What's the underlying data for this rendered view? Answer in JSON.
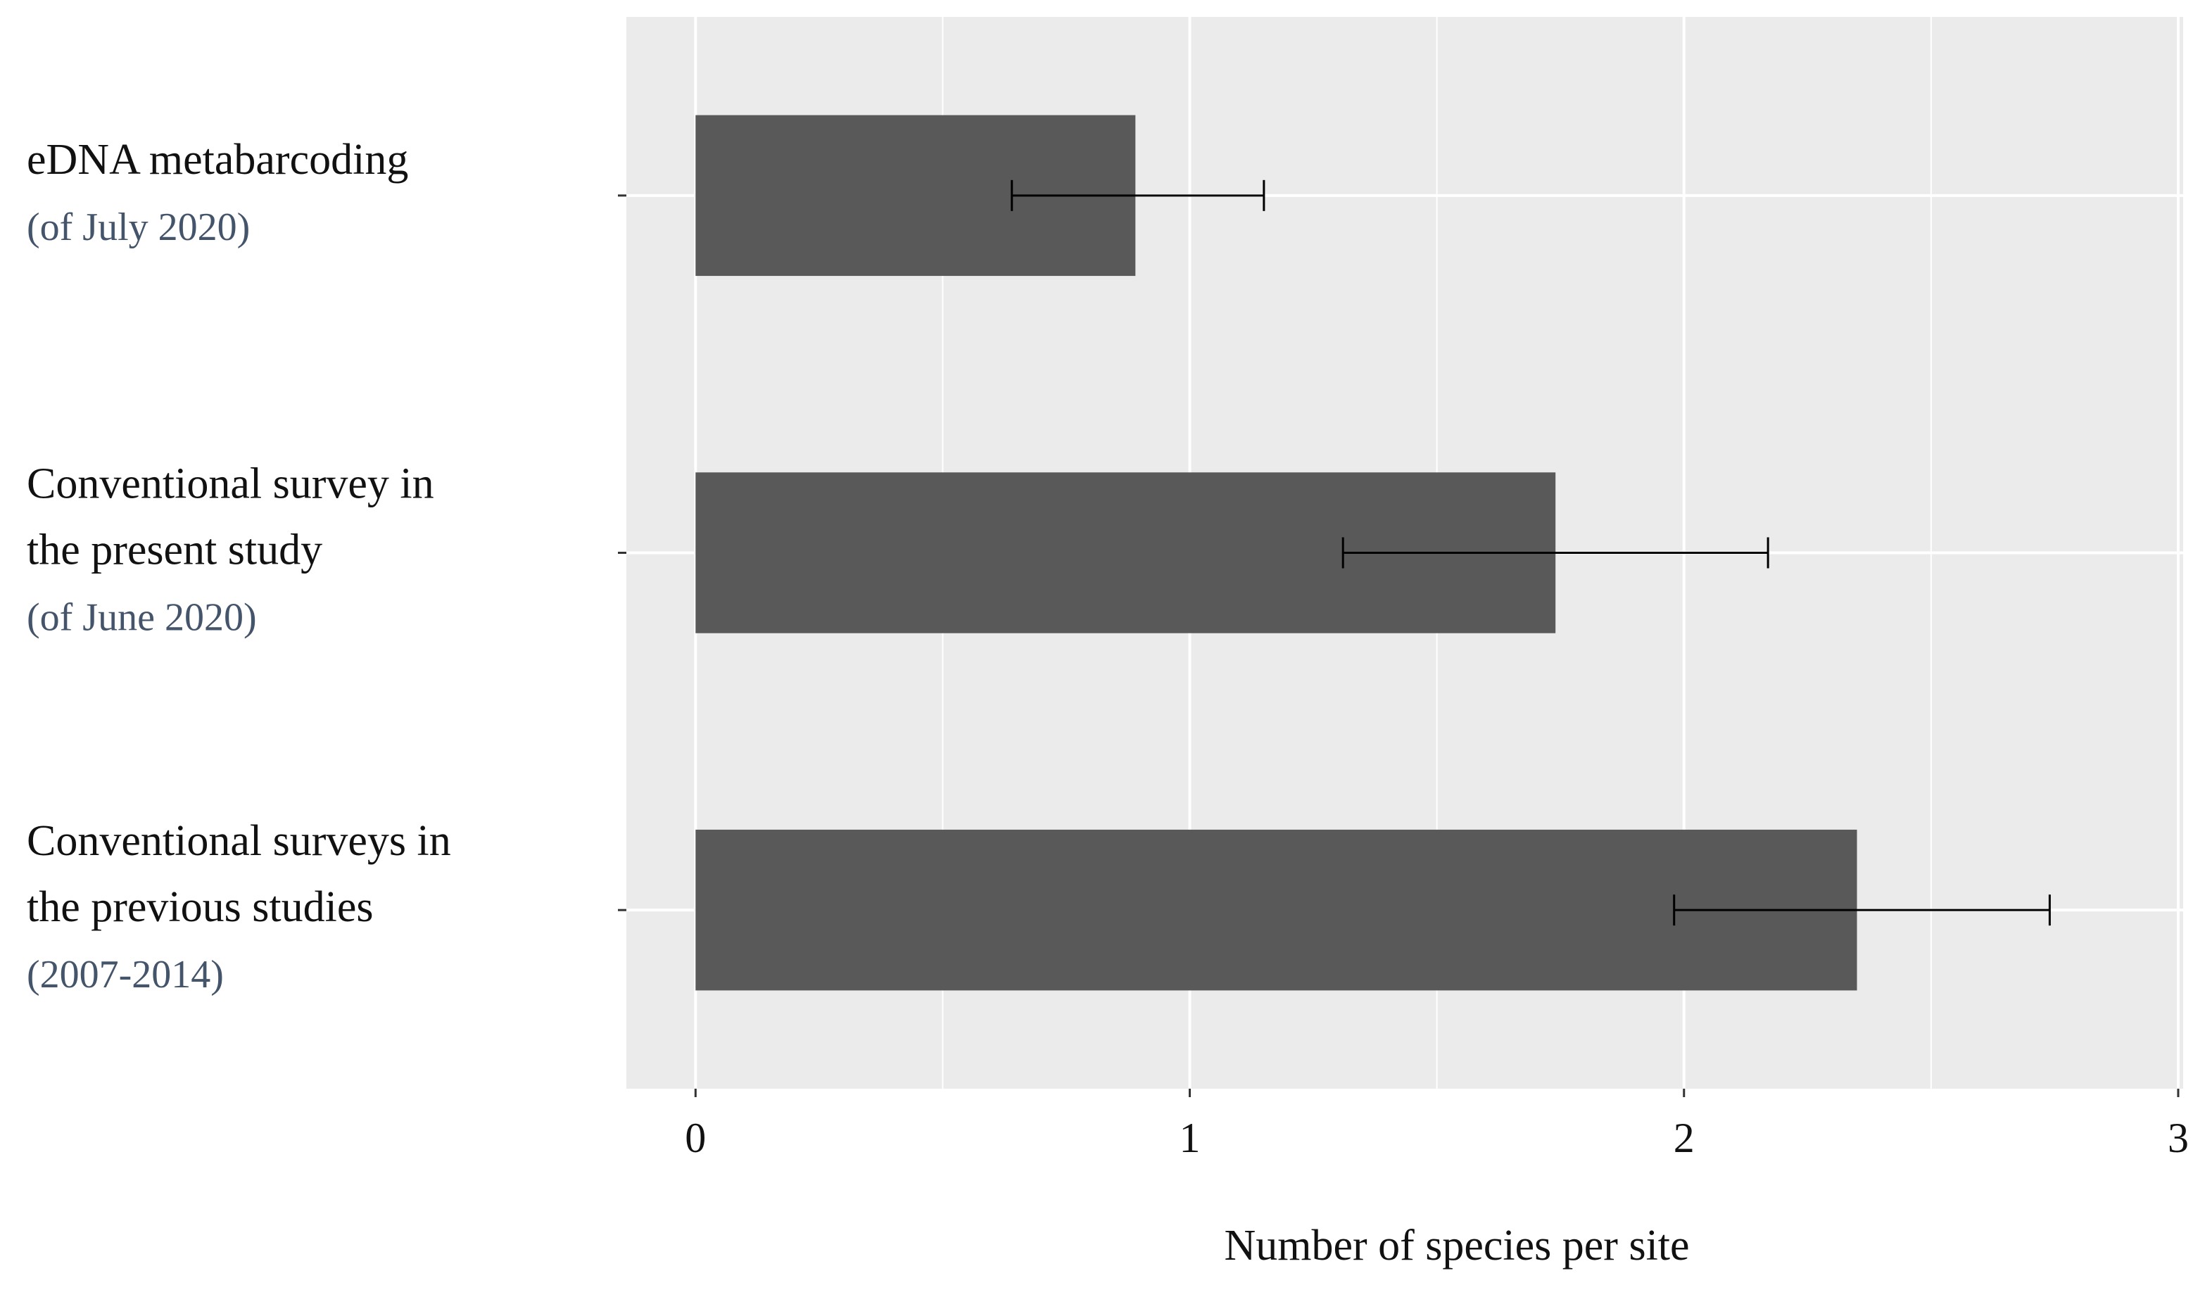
{
  "chart_data": {
    "type": "bar",
    "orientation": "horizontal",
    "categories": [
      {
        "lines": [
          "eDNA metabarcoding"
        ],
        "note": "(of July 2020)"
      },
      {
        "lines": [
          "Conventional survey in",
          "the present study"
        ],
        "note": "(of June 2020)"
      },
      {
        "lines": [
          "Conventional surveys in",
          "the previous studies"
        ],
        "note": "(2007-2014)"
      }
    ],
    "values": [
      0.89,
      1.74,
      2.35
    ],
    "error_low": [
      0.64,
      1.31,
      1.98
    ],
    "error_high": [
      1.15,
      2.17,
      2.74
    ],
    "xlabel": "Number of species per site",
    "ylabel": "",
    "xlim": [
      -0.14,
      3.01
    ],
    "xticks": [
      0,
      1,
      2,
      3
    ],
    "xtick_labels": [
      "0",
      "1",
      "2",
      "3"
    ],
    "grid": true,
    "colors": {
      "bar": "#595959",
      "panel": "#ebebeb",
      "grid": "#ffffff",
      "error_bar": "#000000",
      "category_note": "#44546a"
    }
  }
}
